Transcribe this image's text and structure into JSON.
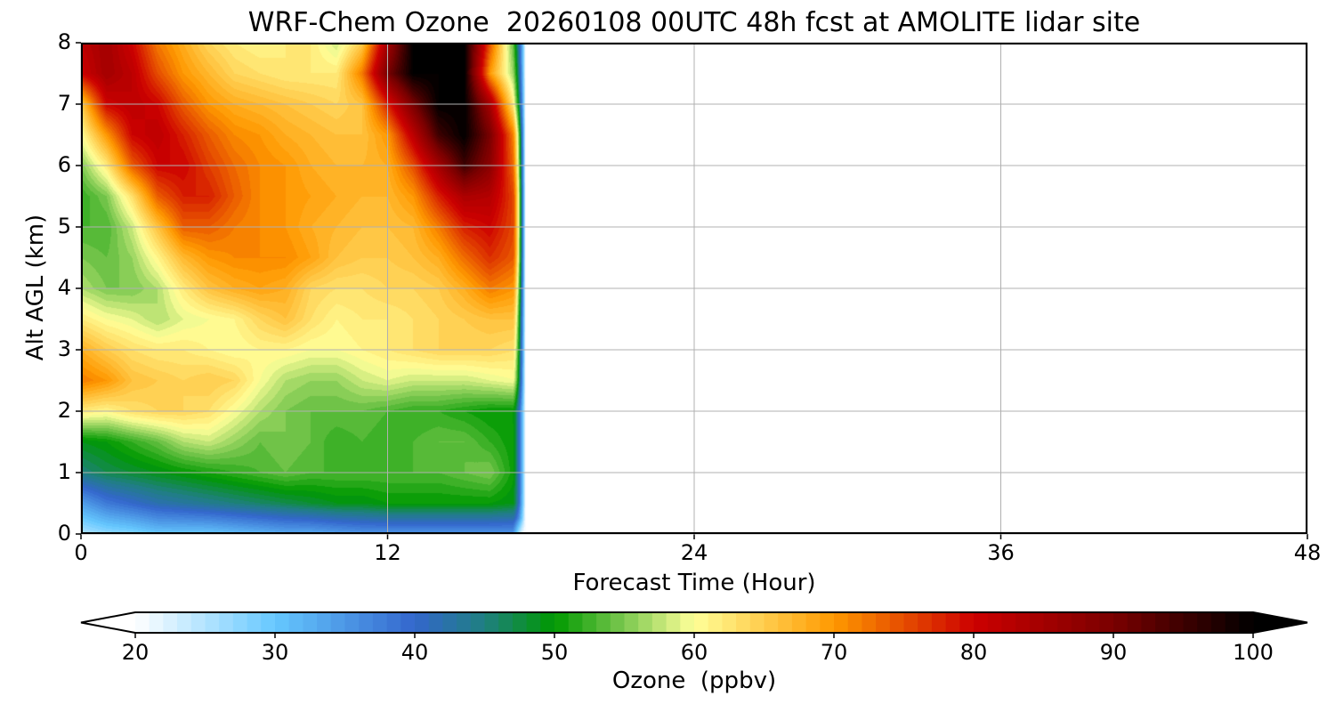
{
  "chart_data": {
    "type": "heatmap",
    "title": "WRF-Chem Ozone  20260108 00UTC 48h fcst at AMOLITE lidar site",
    "xlabel": "Forecast Time (Hour)",
    "ylabel": "Alt AGL (km)",
    "xlim": [
      0,
      48
    ],
    "ylim": [
      0,
      8
    ],
    "xticks": [
      "0",
      "12",
      "24",
      "36",
      "48"
    ],
    "yticks": [
      "0",
      "1",
      "2",
      "3",
      "4",
      "5",
      "6",
      "7",
      "8"
    ],
    "grid": true,
    "data_end_hour": 17.4,
    "hours": [
      0,
      1,
      2,
      3,
      4,
      5,
      6,
      7,
      8,
      9,
      10,
      11,
      12,
      13,
      14,
      15,
      16,
      17
    ],
    "altitudes_km": [
      0,
      0.5,
      1,
      1.5,
      2,
      2.5,
      3,
      3.5,
      4,
      4.5,
      5,
      5.5,
      6,
      6.5,
      7,
      7.5,
      8
    ],
    "ozone_ppbv": [
      [
        25,
        27,
        28,
        30,
        30,
        30,
        31,
        32,
        33,
        33,
        34,
        35,
        35,
        35,
        35,
        35,
        35,
        35
      ],
      [
        34,
        38,
        40,
        42,
        43,
        44,
        45,
        46,
        47,
        48,
        49,
        49,
        50,
        50,
        50,
        50,
        50,
        49
      ],
      [
        45,
        47,
        48,
        49,
        50,
        51,
        52,
        53,
        54,
        53,
        53,
        53,
        53,
        53,
        53,
        54,
        55,
        50
      ],
      [
        49,
        50,
        52,
        54,
        57,
        58,
        56,
        54,
        55,
        54,
        52,
        53,
        52,
        53,
        54,
        54,
        52,
        50
      ],
      [
        62,
        61,
        63,
        64,
        64,
        63,
        60,
        57,
        55,
        54,
        54,
        54,
        53,
        52,
        52,
        51,
        50,
        50
      ],
      [
        72,
        70,
        66,
        65,
        64,
        65,
        64,
        60,
        57,
        56,
        56,
        58,
        59,
        58,
        58,
        58,
        59,
        60
      ],
      [
        68,
        65,
        63,
        62,
        62,
        61,
        60,
        61,
        61,
        60,
        60,
        61,
        62,
        63,
        64,
        64,
        64,
        63
      ],
      [
        62,
        60,
        59,
        57,
        59,
        60,
        61,
        64,
        66,
        63,
        61,
        62,
        62,
        63,
        64,
        65,
        66,
        66
      ],
      [
        57,
        55,
        55,
        57,
        62,
        66,
        68,
        69,
        68,
        64,
        63,
        63,
        64,
        64,
        65,
        68,
        72,
        70
      ],
      [
        55,
        54,
        56,
        61,
        67,
        70,
        71,
        71,
        71,
        69,
        66,
        65,
        65,
        66,
        68,
        73,
        77,
        74
      ],
      [
        53,
        53,
        58,
        66,
        74,
        74,
        72,
        71,
        70,
        68,
        67,
        66,
        66,
        67,
        72,
        78,
        80,
        75
      ],
      [
        52,
        55,
        63,
        74,
        78,
        78,
        74,
        71,
        70,
        69,
        68,
        67,
        67,
        70,
        78,
        84,
        83,
        75
      ],
      [
        55,
        62,
        74,
        80,
        80,
        76,
        73,
        71,
        70,
        68,
        67,
        67,
        68,
        75,
        85,
        95,
        88,
        72
      ],
      [
        60,
        70,
        80,
        82,
        78,
        74,
        71,
        70,
        68,
        67,
        66,
        66,
        70,
        82,
        95,
        100,
        90,
        70
      ],
      [
        65,
        80,
        82,
        80,
        74,
        70,
        68,
        67,
        66,
        65,
        64,
        66,
        78,
        90,
        100,
        100,
        85,
        60
      ],
      [
        80,
        85,
        82,
        75,
        70,
        67,
        64,
        63,
        62,
        62,
        62,
        72,
        90,
        100,
        100,
        100,
        70,
        55
      ],
      [
        82,
        85,
        80,
        72,
        68,
        64,
        62,
        61,
        62,
        62,
        58,
        65,
        85,
        100,
        100,
        100,
        75,
        52
      ]
    ],
    "colorbar": {
      "label": "Ozone  (ppbv)",
      "range": [
        20,
        100
      ],
      "step": 1,
      "ticks": [
        "20",
        "30",
        "40",
        "50",
        "60",
        "70",
        "80",
        "90",
        "100"
      ],
      "extend": "both",
      "anchors": [
        {
          "v": 20,
          "c": "#ffffff"
        },
        {
          "v": 30,
          "c": "#66c8ff"
        },
        {
          "v": 40,
          "c": "#3366cc"
        },
        {
          "v": 45,
          "c": "#1f7f80"
        },
        {
          "v": 50,
          "c": "#009900"
        },
        {
          "v": 55,
          "c": "#7cc850"
        },
        {
          "v": 60,
          "c": "#ffff99"
        },
        {
          "v": 70,
          "c": "#ff9900"
        },
        {
          "v": 80,
          "c": "#cc0000"
        },
        {
          "v": 90,
          "c": "#7a0000"
        },
        {
          "v": 100,
          "c": "#000000"
        }
      ]
    }
  }
}
